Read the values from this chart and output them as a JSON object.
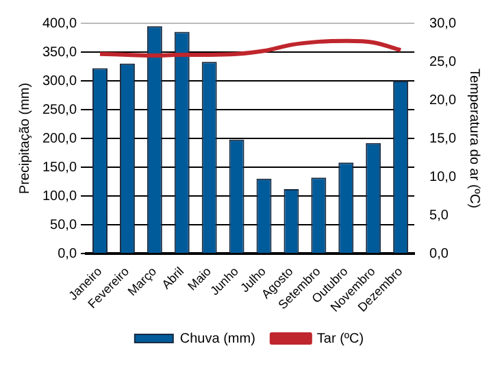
{
  "chart_data": {
    "type": "bar",
    "categories": [
      "Janeiro",
      "Fevereiro",
      "Março",
      "Abril",
      "Maio",
      "Junho",
      "Julho",
      "Agosto",
      "Setembro",
      "Outubro",
      "Novembro",
      "Dezembro"
    ],
    "series": [
      {
        "name": "Chuva (mm)",
        "color": "#005b9a",
        "values": [
          322,
          330,
          395,
          385,
          333,
          198,
          130,
          112,
          132,
          158,
          192,
          300
        ]
      },
      {
        "name": "Tar (ºC)",
        "type": "line",
        "axis": "y2",
        "color": "#c0262d",
        "values": [
          26.0,
          25.9,
          25.8,
          25.9,
          25.9,
          26.0,
          26.4,
          27.2,
          27.6,
          27.7,
          27.5,
          26.5
        ]
      }
    ],
    "ylabel": "Precipitação (mm)",
    "y2label": "Temperatura do ar (ºC)",
    "ylim": [
      0,
      400
    ],
    "yticks": [
      {
        "value": 0,
        "label": "0,0"
      },
      {
        "value": 50,
        "label": "50,0"
      },
      {
        "value": 100,
        "label": "100,0"
      },
      {
        "value": 150,
        "label": "150,0"
      },
      {
        "value": 200,
        "label": "200,0"
      },
      {
        "value": 250,
        "label": "250,0"
      },
      {
        "value": 300,
        "label": "300,0"
      },
      {
        "value": 350,
        "label": "350,0"
      },
      {
        "value": 400,
        "label": "400,0"
      }
    ],
    "y2lim": [
      0,
      30
    ],
    "y2ticks": [
      {
        "value": 0,
        "label": "0,0"
      },
      {
        "value": 5,
        "label": "5,0"
      },
      {
        "value": 10,
        "label": "10,0"
      },
      {
        "value": 15,
        "label": "15,0"
      },
      {
        "value": 20,
        "label": "20,0"
      },
      {
        "value": 25,
        "label": "25,0"
      },
      {
        "value": 30,
        "label": "30,0"
      }
    ],
    "grid": "y",
    "legend": "bottom",
    "marker": "none",
    "line_style": "solid"
  }
}
